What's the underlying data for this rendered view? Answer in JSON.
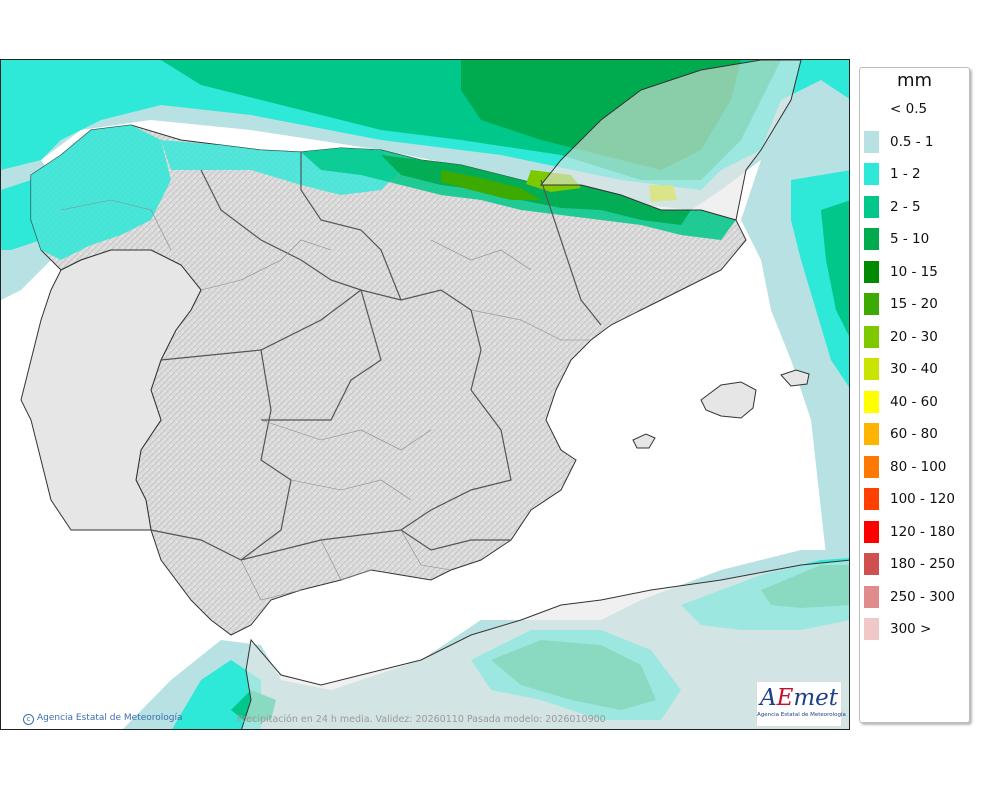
{
  "footer": {
    "copyright": "Agencia Estatal de Meteorología",
    "caption": "Precipitación en 24 h media. Validez: 20260110 Pasada modelo: 2026010900"
  },
  "logo": {
    "mark_a": "A",
    "mark_e": "E",
    "mark_rest": "met",
    "subtitle": "Agencia Estatal de Meteorología"
  },
  "legend": {
    "unit": "mm",
    "items": [
      {
        "label": "< 0.5",
        "color": "#ffffff"
      },
      {
        "label": "0.5 - 1",
        "color": "#b7e1e3"
      },
      {
        "label": "1 - 2",
        "color": "#2ee8d8"
      },
      {
        "label": "2 - 5",
        "color": "#00c88a"
      },
      {
        "label": "5 - 10",
        "color": "#00aa4f"
      },
      {
        "label": "10 - 15",
        "color": "#008a00"
      },
      {
        "label": "15 - 20",
        "color": "#3caa00"
      },
      {
        "label": "20 - 30",
        "color": "#7ec800"
      },
      {
        "label": "30 - 40",
        "color": "#c8e400"
      },
      {
        "label": "40 - 60",
        "color": "#ffff00"
      },
      {
        "label": "60 - 80",
        "color": "#ffb400"
      },
      {
        "label": "80 - 100",
        "color": "#ff7800"
      },
      {
        "label": "100 - 120",
        "color": "#ff4000"
      },
      {
        "label": "120 - 180",
        "color": "#ff0000"
      },
      {
        "label": "180 - 250",
        "color": "#d05050"
      },
      {
        "label": "250 - 300",
        "color": "#e08c8c"
      },
      {
        "label": "300 >",
        "color": "#f0c8c8"
      }
    ]
  }
}
